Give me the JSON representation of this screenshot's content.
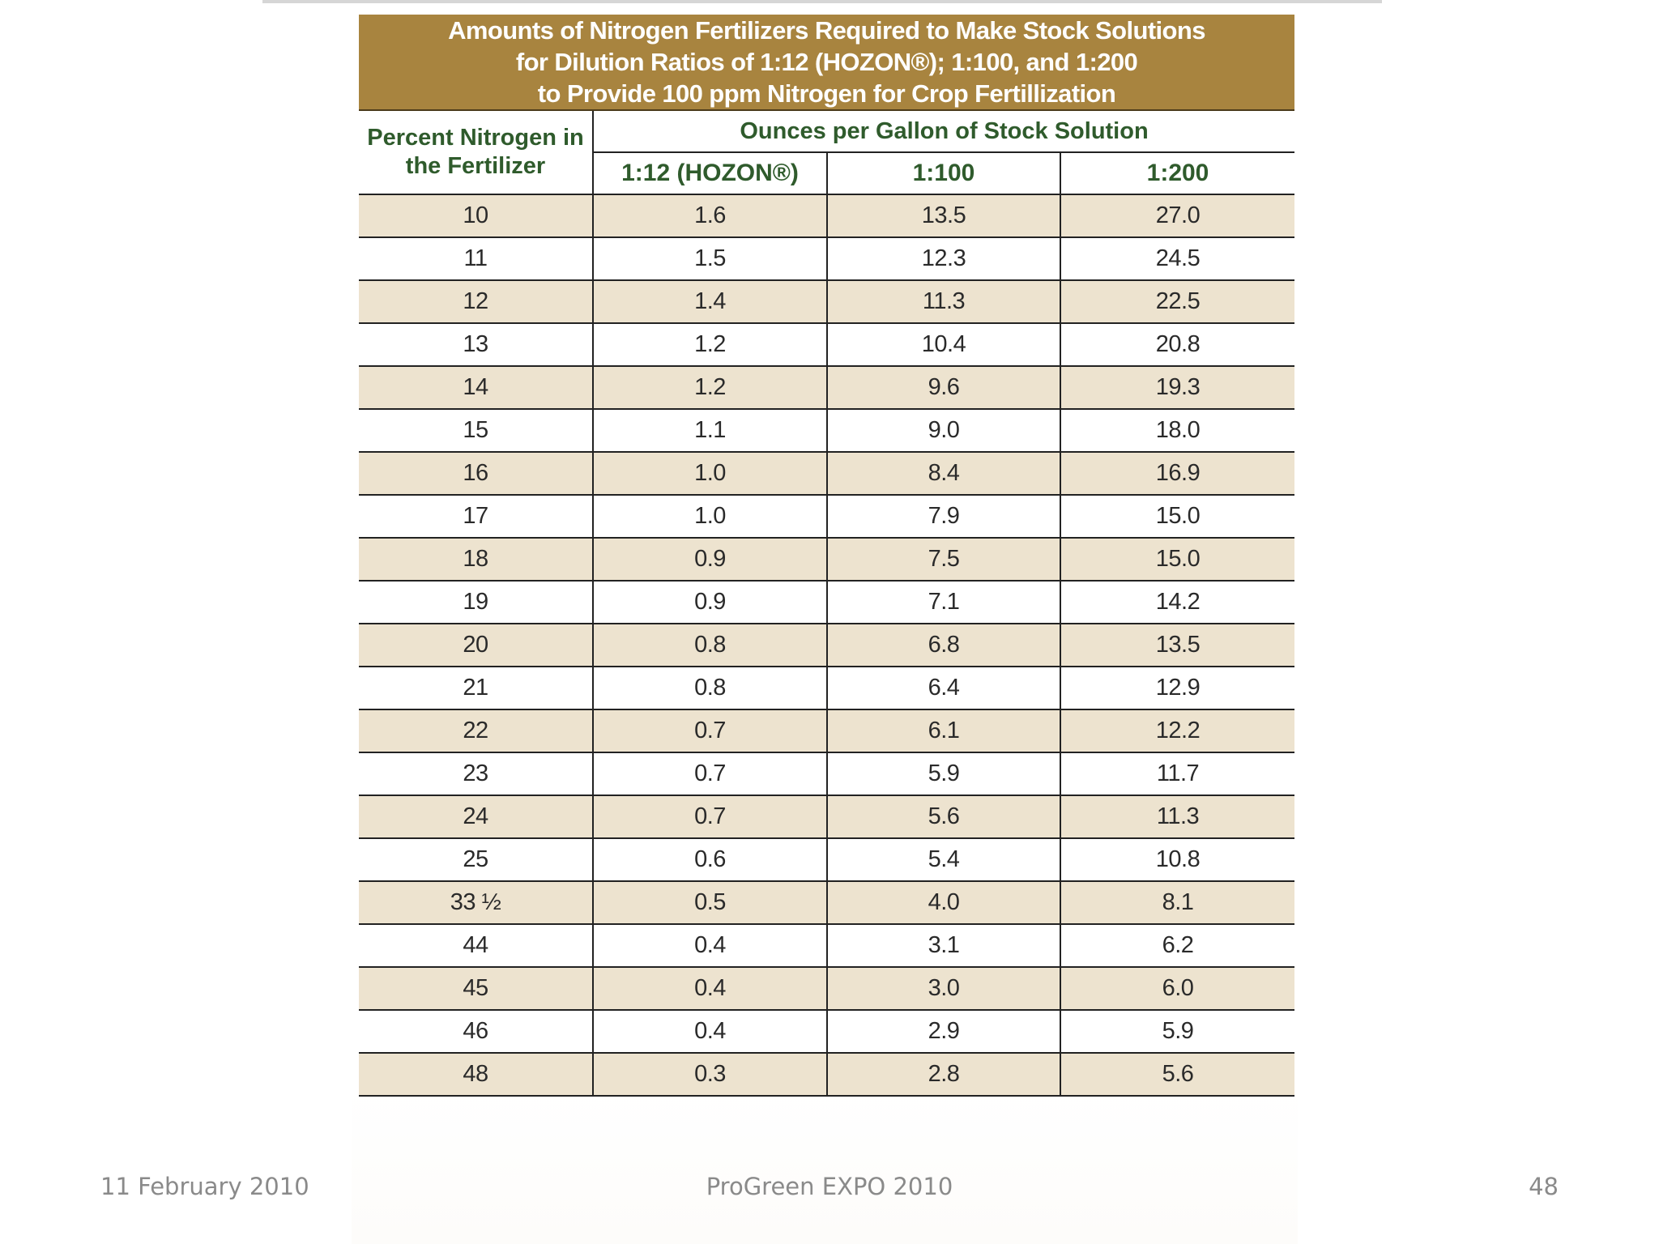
{
  "table": {
    "title_lines": [
      "Amounts of Nitrogen Fertilizers Required to Make Stock Solutions",
      "for Dilution Ratios of 1:12 (HOZON®); 1:100, and 1:200",
      "to Provide 100 ppm Nitrogen for Crop Fertillization"
    ],
    "row_header": "Percent Nitrogen in the Fertilizer",
    "group_header": "Ounces per Gallon of Stock Solution",
    "columns": [
      "1:12 (HOZON®)",
      "1:100",
      "1:200"
    ],
    "rows": [
      [
        "10",
        "1.6",
        "13.5",
        "27.0"
      ],
      [
        "11",
        "1.5",
        "12.3",
        "24.5"
      ],
      [
        "12",
        "1.4",
        "11.3",
        "22.5"
      ],
      [
        "13",
        "1.2",
        "10.4",
        "20.8"
      ],
      [
        "14",
        "1.2",
        "9.6",
        "19.3"
      ],
      [
        "15",
        "1.1",
        "9.0",
        "18.0"
      ],
      [
        "16",
        "1.0",
        "8.4",
        "16.9"
      ],
      [
        "17",
        "1.0",
        "7.9",
        "15.0"
      ],
      [
        "18",
        "0.9",
        "7.5",
        "15.0"
      ],
      [
        "19",
        "0.9",
        "7.1",
        "14.2"
      ],
      [
        "20",
        "0.8",
        "6.8",
        "13.5"
      ],
      [
        "21",
        "0.8",
        "6.4",
        "12.9"
      ],
      [
        "22",
        "0.7",
        "6.1",
        "12.2"
      ],
      [
        "23",
        "0.7",
        "5.9",
        "11.7"
      ],
      [
        "24",
        "0.7",
        "5.6",
        "11.3"
      ],
      [
        "25",
        "0.6",
        "5.4",
        "10.8"
      ],
      [
        "33 ½",
        "0.5",
        "4.0",
        "8.1"
      ],
      [
        "44",
        "0.4",
        "3.1",
        "6.2"
      ],
      [
        "45",
        "0.4",
        "3.0",
        "6.0"
      ],
      [
        "46",
        "0.4",
        "2.9",
        "5.9"
      ],
      [
        "48",
        "0.3",
        "2.8",
        "5.6"
      ]
    ],
    "colors": {
      "title_band": "#a8843f",
      "header_text": "#2f5b2c",
      "row_shade": "#ede3cf"
    }
  },
  "footer": {
    "date": "11 February 2010",
    "title": "ProGreen EXPO 2010",
    "page": "48"
  }
}
